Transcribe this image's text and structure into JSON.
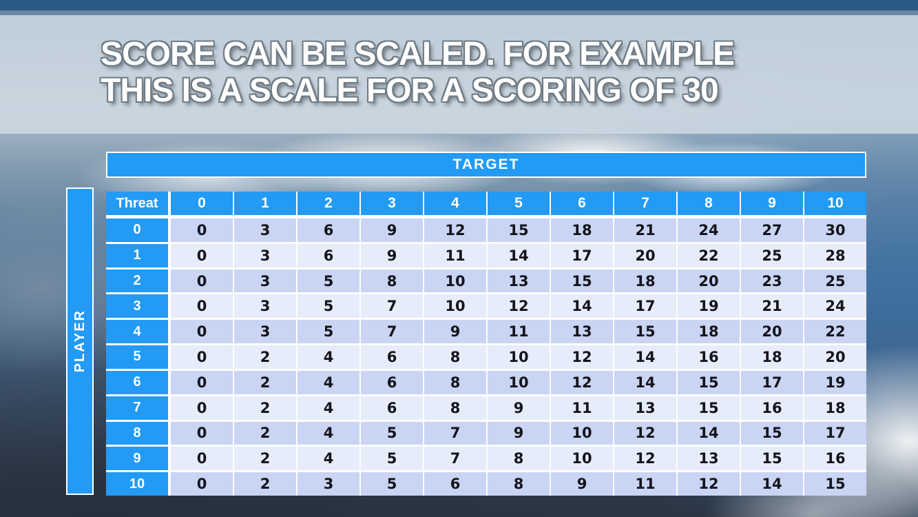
{
  "title": {
    "line1": "SCORE CAN BE SCALED. FOR EXAMPLE",
    "line2": "THIS IS A SCALE FOR A SCORING OF 30"
  },
  "table": {
    "target_label": "TARGET",
    "player_label": "PLAYER",
    "corner_label": "Threat",
    "col_headers": [
      "0",
      "1",
      "2",
      "3",
      "4",
      "5",
      "6",
      "7",
      "8",
      "9",
      "10"
    ],
    "row_headers": [
      "0",
      "1",
      "2",
      "3",
      "4",
      "5",
      "6",
      "7",
      "8",
      "9",
      "10"
    ],
    "rows": [
      [
        0,
        3,
        6,
        9,
        12,
        15,
        18,
        21,
        24,
        27,
        30
      ],
      [
        0,
        3,
        6,
        9,
        11,
        14,
        17,
        20,
        22,
        25,
        28
      ],
      [
        0,
        3,
        5,
        8,
        10,
        13,
        15,
        18,
        20,
        23,
        25
      ],
      [
        0,
        3,
        5,
        7,
        10,
        12,
        14,
        17,
        19,
        21,
        24
      ],
      [
        0,
        3,
        5,
        7,
        9,
        11,
        13,
        15,
        18,
        20,
        22
      ],
      [
        0,
        2,
        4,
        6,
        8,
        10,
        12,
        14,
        16,
        18,
        20
      ],
      [
        0,
        2,
        4,
        6,
        8,
        10,
        12,
        14,
        15,
        17,
        19
      ],
      [
        0,
        2,
        4,
        6,
        8,
        9,
        11,
        13,
        15,
        16,
        18
      ],
      [
        0,
        2,
        4,
        5,
        7,
        9,
        10,
        12,
        14,
        15,
        17
      ],
      [
        0,
        2,
        4,
        5,
        7,
        8,
        10,
        12,
        13,
        15,
        16
      ],
      [
        0,
        2,
        3,
        5,
        6,
        8,
        9,
        11,
        12,
        14,
        15
      ]
    ]
  },
  "chart_data": {
    "type": "table",
    "title": "Scoring scale for a scoring of 30",
    "column_axis_label": "TARGET",
    "row_axis_label": "PLAYER",
    "corner_label": "Threat",
    "columns": [
      "0",
      "1",
      "2",
      "3",
      "4",
      "5",
      "6",
      "7",
      "8",
      "9",
      "10"
    ],
    "row_labels": [
      "0",
      "1",
      "2",
      "3",
      "4",
      "5",
      "6",
      "7",
      "8",
      "9",
      "10"
    ],
    "values": [
      [
        0,
        3,
        6,
        9,
        12,
        15,
        18,
        21,
        24,
        27,
        30
      ],
      [
        0,
        3,
        6,
        9,
        11,
        14,
        17,
        20,
        22,
        25,
        28
      ],
      [
        0,
        3,
        5,
        8,
        10,
        13,
        15,
        18,
        20,
        23,
        25
      ],
      [
        0,
        3,
        5,
        7,
        10,
        12,
        14,
        17,
        19,
        21,
        24
      ],
      [
        0,
        3,
        5,
        7,
        9,
        11,
        13,
        15,
        18,
        20,
        22
      ],
      [
        0,
        2,
        4,
        6,
        8,
        10,
        12,
        14,
        16,
        18,
        20
      ],
      [
        0,
        2,
        4,
        6,
        8,
        10,
        12,
        14,
        15,
        17,
        19
      ],
      [
        0,
        2,
        4,
        6,
        8,
        9,
        11,
        13,
        15,
        16,
        18
      ],
      [
        0,
        2,
        4,
        5,
        7,
        9,
        10,
        12,
        14,
        15,
        17
      ],
      [
        0,
        2,
        4,
        5,
        7,
        8,
        10,
        12,
        13,
        15,
        16
      ],
      [
        0,
        2,
        3,
        5,
        6,
        8,
        9,
        11,
        12,
        14,
        15
      ]
    ]
  },
  "colors": {
    "accent_blue": "#239af4",
    "row_band_dark": "#c9d5f3",
    "row_band_light": "#e7ecfa",
    "top_bar": "#2b5b84",
    "cell_text": "#14141c"
  }
}
